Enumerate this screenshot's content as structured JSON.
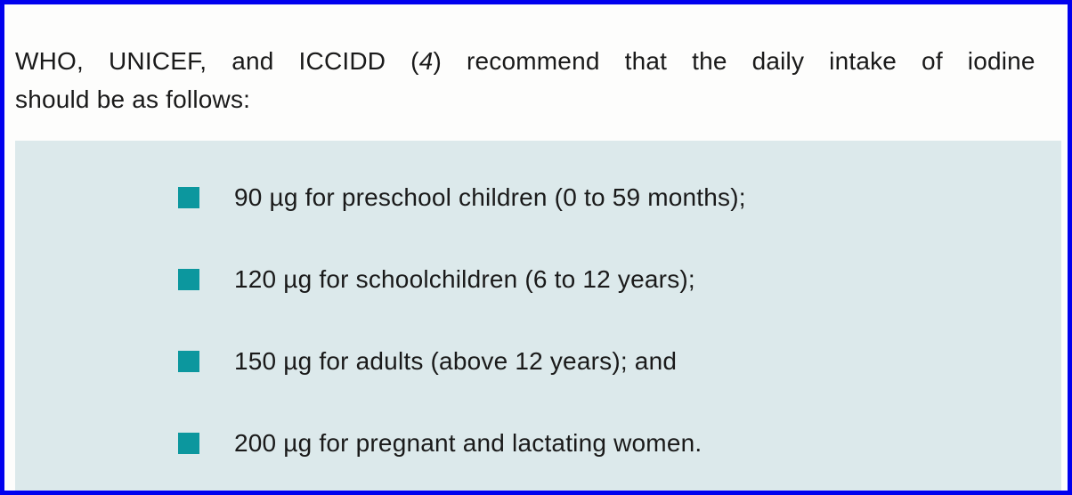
{
  "intro": {
    "line1_pre": "WHO, UNICEF, and ICCIDD (",
    "citation": "4",
    "line1_post": ") recommend that the daily intake of iodine",
    "line2": "should be as follows:"
  },
  "recommendations": {
    "items": [
      "90 µg for preschool children (0 to 59 months);",
      "120 µg for schoolchildren (6 to 12 years);",
      "150 µg for adults (above 12 years); and",
      "200 µg for pregnant and lactating women."
    ]
  },
  "colors": {
    "frame_border": "#0101ee",
    "panel_background": "#dce9eb",
    "bullet": "#0c979e",
    "text": "#1a1a1a"
  }
}
